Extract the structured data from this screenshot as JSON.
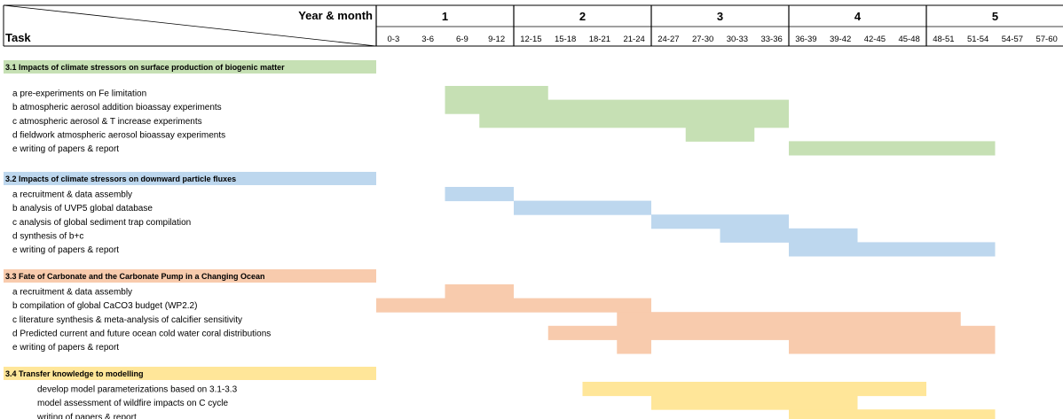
{
  "chart_data": {
    "type": "gantt",
    "header": {
      "time_label": "Year & month",
      "task_label": "Task"
    },
    "years": [
      "1",
      "2",
      "3",
      "4",
      "5"
    ],
    "periods": [
      "0-3",
      "3-6",
      "6-9",
      "9-12",
      "12-15",
      "15-18",
      "18-21",
      "21-24",
      "24-27",
      "27-30",
      "30-33",
      "33-36",
      "36-39",
      "39-42",
      "42-45",
      "45-48",
      "48-51",
      "51-54",
      "54-57",
      "57-60"
    ],
    "colors": {
      "s31": "#c6e0b4",
      "s32": "#bdd7ee",
      "s33": "#f8cbad",
      "s34": "#ffe699"
    },
    "sections": [
      {
        "title": "3.1 Impacts of climate stressors on surface production of biogenic matter",
        "color_key": "s31",
        "tasks": [
          {
            "label": "a pre-experiments on Fe limitation",
            "segments": [
              [
                6,
                15
              ]
            ]
          },
          {
            "label": "b atmospheric aerosol addition bioassay experiments",
            "segments": [
              [
                6,
                36
              ]
            ]
          },
          {
            "label": "c atmospheric aerosol & T increase experiments",
            "segments": [
              [
                9,
                36
              ]
            ]
          },
          {
            "label": "d fieldwork atmospheric aerosol bioassay experiments",
            "segments": [
              [
                27,
                33
              ]
            ]
          },
          {
            "label": "e writing of papers & report",
            "segments": [
              [
                36,
                54
              ]
            ]
          }
        ]
      },
      {
        "title": "3.2 Impacts of climate stressors on downward particle fluxes",
        "color_key": "s32",
        "tasks": [
          {
            "label": "a recruitment & data assembly",
            "segments": [
              [
                6,
                12
              ]
            ]
          },
          {
            "label": "b analysis of UVP5 global database",
            "segments": [
              [
                12,
                24
              ]
            ]
          },
          {
            "label": "c analysis of global sediment trap compilation",
            "segments": [
              [
                24,
                36
              ]
            ]
          },
          {
            "label": "d synthesis of b+c",
            "segments": [
              [
                30,
                42
              ]
            ]
          },
          {
            "label": "e writing of papers & report",
            "segments": [
              [
                36,
                54
              ]
            ]
          }
        ]
      },
      {
        "title": "3.3 Fate of Carbonate and the Carbonate Pump in a Changing Ocean",
        "color_key": "s33",
        "tasks": [
          {
            "label": "a recruitment & data assembly",
            "segments": [
              [
                6,
                12
              ]
            ]
          },
          {
            "label": "b compilation of global CaCO3 budget (WP2.2)",
            "segments": [
              [
                0,
                24
              ]
            ]
          },
          {
            "label": "c literature synthesis & meta-analysis of calcifier sensitivity",
            "segments": [
              [
                21,
                51
              ]
            ]
          },
          {
            "label": "d Predicted current and future ocean cold water coral distributions",
            "segments": [
              [
                15,
                54
              ]
            ]
          },
          {
            "label": "e writing of papers & report",
            "segments": [
              [
                21,
                24
              ],
              [
                36,
                54
              ]
            ]
          }
        ]
      },
      {
        "title": "3.4 Transfer knowledge to modelling",
        "color_key": "s34",
        "tasks": [
          {
            "label": "develop model parameterizations based on 3.1-3.3",
            "segments": [
              [
                18,
                48
              ]
            ]
          },
          {
            "label": "model assessment of wildfire impacts on C cycle",
            "segments": [
              [
                24,
                42
              ]
            ]
          },
          {
            "label": "writing of papers & report",
            "segments": [
              [
                36,
                54
              ]
            ]
          }
        ]
      }
    ]
  }
}
